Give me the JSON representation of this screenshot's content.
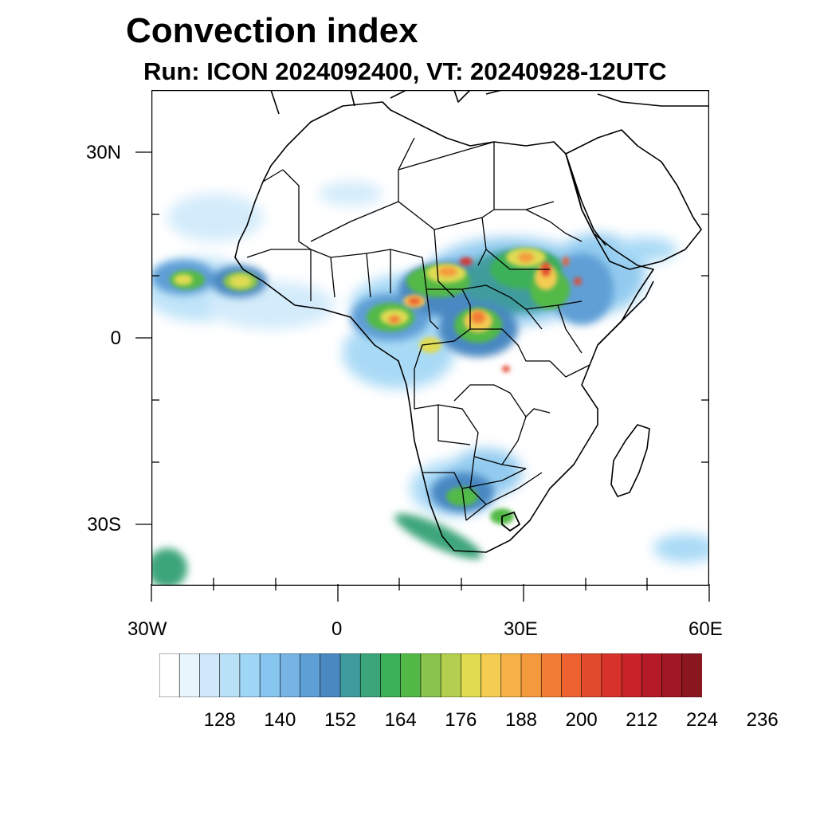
{
  "header": {
    "title": "Convection index",
    "subtitle": "Run: ICON 2024092400,  VT: 20240928-12UTC"
  },
  "map": {
    "lat_labels": [
      "30N",
      "0",
      "30S"
    ],
    "lon_labels": [
      "30W",
      "0",
      "30E",
      "60E"
    ],
    "lat_range": [
      -40,
      40
    ],
    "lon_range": [
      -30,
      60
    ]
  },
  "colorbar": {
    "tick_labels": [
      "128",
      "140",
      "152",
      "164",
      "176",
      "188",
      "200",
      "212",
      "224",
      "236"
    ],
    "colors": [
      "#ffffff",
      "#e9f5fd",
      "#cfe9fa",
      "#b8e1f8",
      "#a0d6f5",
      "#87c6ee",
      "#76b4e4",
      "#5e9fd6",
      "#4a88c2",
      "#3f9c9c",
      "#3ca57a",
      "#3db05a",
      "#52b947",
      "#8ac44e",
      "#b4cf4f",
      "#e0dc52",
      "#f5cc52",
      "#f6b248",
      "#f59a3c",
      "#f27e35",
      "#ec6231",
      "#e24a2d",
      "#d8332b",
      "#c9232a",
      "#b41b27",
      "#a01823",
      "#8a1720"
    ]
  }
}
